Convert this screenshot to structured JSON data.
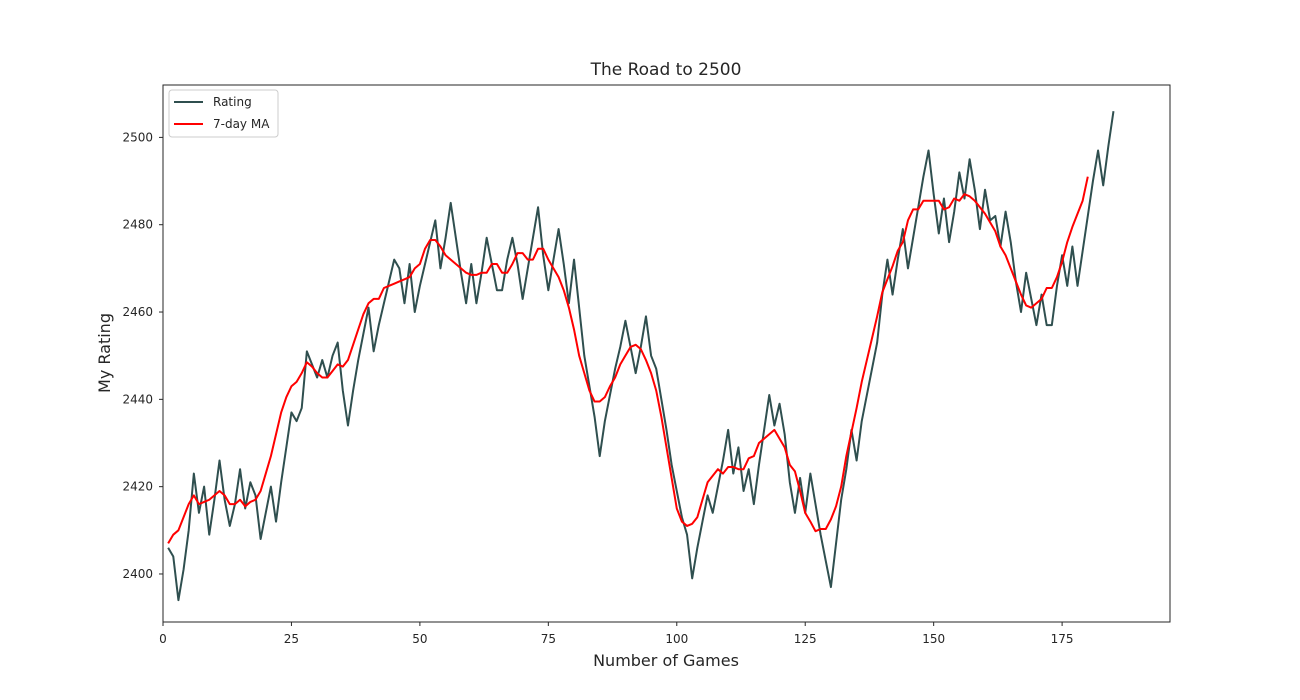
{
  "chart_data": {
    "type": "line",
    "title": "The Road to 2500",
    "xlabel": "Number of Games",
    "ylabel": "My Rating",
    "xlim": [
      0,
      196
    ],
    "ylim": [
      2389,
      2512
    ],
    "xticks": [
      0,
      25,
      50,
      75,
      100,
      125,
      150,
      175
    ],
    "yticks": [
      2400,
      2420,
      2440,
      2460,
      2480,
      2500
    ],
    "grid": false,
    "legend_position": "top-left",
    "series": [
      {
        "name": "Rating",
        "color": "#2f4f4f",
        "x_start": 1,
        "values": [
          2406,
          2404,
          2394,
          2401,
          2410,
          2423,
          2414,
          2420,
          2409,
          2417,
          2426,
          2417,
          2411,
          2416,
          2424,
          2415,
          2421,
          2418,
          2408,
          2414,
          2420,
          2412,
          2421,
          2429,
          2437,
          2435,
          2438,
          2451,
          2448,
          2445,
          2449,
          2445,
          2450,
          2453,
          2442,
          2434,
          2442,
          2449,
          2455,
          2461,
          2451,
          2457,
          2462,
          2467,
          2472,
          2470,
          2462,
          2471,
          2460,
          2466,
          2471,
          2476,
          2481,
          2470,
          2477,
          2485,
          2477,
          2469,
          2462,
          2471,
          2462,
          2469,
          2477,
          2471,
          2465,
          2465,
          2472,
          2477,
          2471,
          2463,
          2470,
          2477,
          2484,
          2473,
          2465,
          2472,
          2479,
          2471,
          2462,
          2472,
          2461,
          2450,
          2443,
          2436,
          2427,
          2435,
          2441,
          2447,
          2452,
          2458,
          2452,
          2446,
          2452,
          2459,
          2450,
          2447,
          2440,
          2433,
          2425,
          2419,
          2413,
          2409,
          2399,
          2406,
          2412,
          2418,
          2414,
          2420,
          2426,
          2433,
          2423,
          2429,
          2419,
          2424,
          2416,
          2425,
          2433,
          2441,
          2434,
          2439,
          2432,
          2421,
          2414,
          2422,
          2414,
          2423,
          2416,
          2409,
          2403,
          2397,
          2407,
          2417,
          2424,
          2433,
          2426,
          2435,
          2441,
          2447,
          2453,
          2464,
          2472,
          2464,
          2472,
          2479,
          2470,
          2477,
          2484,
          2491,
          2497,
          2487,
          2478,
          2486,
          2476,
          2483,
          2492,
          2486,
          2495,
          2488,
          2479,
          2488,
          2481,
          2482,
          2475,
          2483,
          2476,
          2467,
          2460,
          2469,
          2463,
          2457,
          2464,
          2457,
          2457,
          2466,
          2473,
          2466,
          2475,
          2466,
          2474,
          2482,
          2490,
          2497,
          2489,
          2498,
          2506
        ]
      },
      {
        "name": "7-day MA",
        "color": "#ff0000",
        "x_start": 1,
        "values": [
          2407,
          2409,
          2410,
          2413,
          2416,
          2418,
          2416,
          2416.5,
          2417,
          2418,
          2419,
          2418,
          2416,
          2416,
          2417,
          2415.5,
          2416.5,
          2417,
          2419,
          2423,
          2427,
          2432,
          2437,
          2440.5,
          2443,
          2444,
          2446,
          2448.5,
          2447.5,
          2446,
          2445,
          2445,
          2446.5,
          2448,
          2447.5,
          2449,
          2452.5,
          2456,
          2459.5,
          2462,
          2463,
          2463,
          2465.5,
          2466,
          2466.5,
          2467,
          2467.5,
          2468,
          2470,
          2471,
          2474.5,
          2476.5,
          2476.5,
          2475,
          2473,
          2472,
          2471,
          2470,
          2469,
          2468.5,
          2468.5,
          2469,
          2469,
          2471,
          2471,
          2469,
          2469,
          2471,
          2473.5,
          2473.5,
          2472,
          2472,
          2474.5,
          2474.5,
          2472,
          2470,
          2468,
          2465,
          2461,
          2456,
          2450,
          2446,
          2442,
          2439.5,
          2439.5,
          2440.5,
          2443,
          2445,
          2448,
          2450,
          2452,
          2452.5,
          2451.5,
          2449,
          2446,
          2442,
          2436,
          2429,
          2422,
          2415,
          2412,
          2411,
          2411.5,
          2413,
          2417,
          2421,
          2422.5,
          2424,
          2423,
          2424.5,
          2424.5,
          2424,
          2424,
          2426.5,
          2427,
          2430,
          2431,
          2432,
          2433,
          2431,
          2429,
          2425,
          2423.5,
          2419,
          2414,
          2412,
          2409.8,
          2410.3,
          2410.3,
          2412.5,
          2415.5,
          2420,
          2427,
          2432.5,
          2438,
          2444,
          2449,
          2454,
          2459,
          2464.5,
          2467.5,
          2470.5,
          2474,
          2476,
          2481,
          2483.5,
          2483.5,
          2485.5,
          2485.5,
          2485.5,
          2485.5,
          2483.5,
          2484,
          2486,
          2485.5,
          2487,
          2486.5,
          2485.5,
          2484,
          2482.5,
          2480.5,
          2478.5,
          2475,
          2473,
          2470,
          2467,
          2464,
          2461.5,
          2461,
          2462,
          2463,
          2465.5,
          2465.5,
          2468,
          2471.5,
          2476,
          2479.5,
          2482.5,
          2485.5,
          2491
        ]
      }
    ]
  }
}
